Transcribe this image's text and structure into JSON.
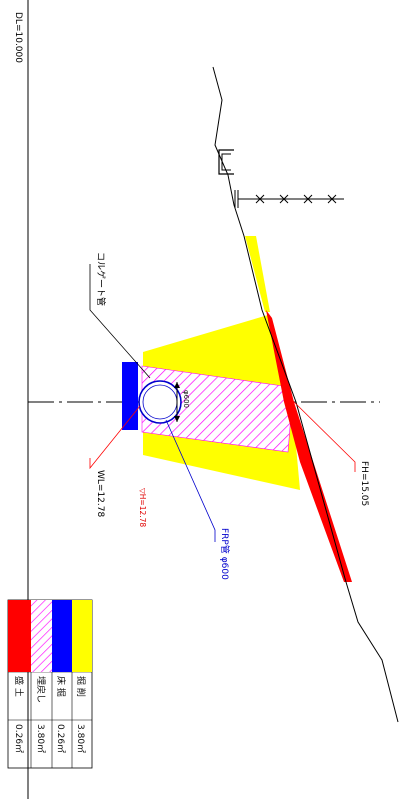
{
  "header": {
    "dl_text": "DL=10.000"
  },
  "annotations": {
    "fh_label": "FH=15.05",
    "corrugated_label": "コルゲート管",
    "wl_label": "WL=12.78",
    "water_label": "▽H=12.78",
    "frp_label": "FRP管 φ600",
    "diameter_label": "φ600"
  },
  "legend": [
    {
      "name": "掘 削",
      "value": "3.80㎡",
      "color": "#ffff00",
      "pattern": "solid"
    },
    {
      "name": "床 掘",
      "value": "0.26㎡",
      "color": "#0000ff",
      "pattern": "solid"
    },
    {
      "name": "埋戻し",
      "value": "3.80㎡",
      "color": "#ff00ff",
      "pattern": "hatch"
    },
    {
      "name": "盛 土",
      "value": "0.26㎡",
      "color": "#ff0000",
      "pattern": "solid"
    }
  ],
  "colors": {
    "excavation": "#ffff00",
    "bedding": "#0000ff",
    "backfill": "#ff00ff",
    "embankment": "#ff0000",
    "leader_red": "#ff0000",
    "leader_blue": "#0000cc"
  }
}
